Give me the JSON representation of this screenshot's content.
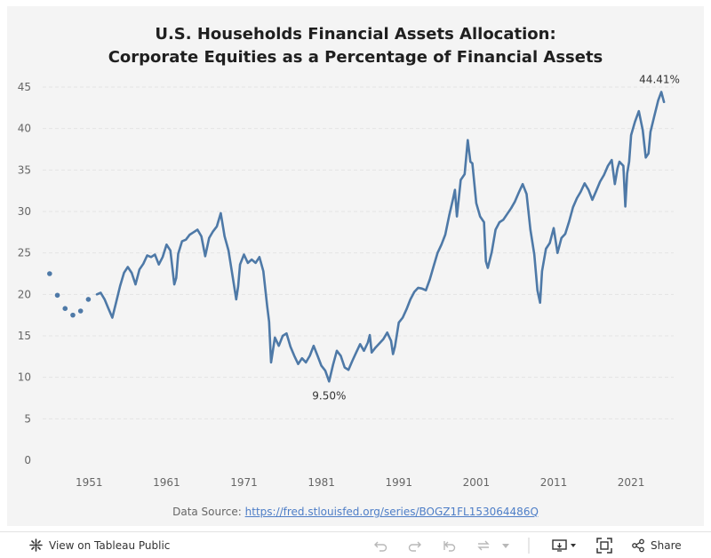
{
  "title": {
    "line1": "U.S. Households Financial Assets Allocation:",
    "line2": "Corporate Equities as a Percentage of Financial Assets"
  },
  "source": {
    "prefix": "Data Source: ",
    "link_text": "https://fred.stlouisfed.org/series/BOGZ1FL153064486Q"
  },
  "toolbar": {
    "view_label": "View on Tableau Public",
    "share_label": "Share",
    "icons": [
      "tableau-logo-icon",
      "undo-icon",
      "redo-icon",
      "revert-icon",
      "refresh-icon",
      "pause-dropdown-icon",
      "download-icon",
      "fullscreen-icon",
      "share-icon"
    ]
  },
  "colors": {
    "line": "#4e79a7",
    "background": "#f4f4f4",
    "grid": "#e3e3e3",
    "axis_text": "#666666"
  },
  "chart_data": {
    "type": "line",
    "title": "U.S. Households Financial Assets Allocation: Corporate Equities as a Percentage of Financial Assets",
    "ylim": [
      0,
      45
    ],
    "yticks": [
      "0",
      "5",
      "10",
      "15",
      "20",
      "25",
      "30",
      "35",
      "40",
      "45"
    ],
    "xlim": [
      1945,
      2026.5
    ],
    "xticks": [
      "1951",
      "1961",
      "1971",
      "1981",
      "1991",
      "2001",
      "2011",
      "2021"
    ],
    "grid": "horizontal dashed",
    "annual_points": [
      [
        1945.9,
        22.5
      ],
      [
        1946.9,
        19.9
      ],
      [
        1947.9,
        18.3
      ],
      [
        1948.9,
        17.5
      ],
      [
        1949.9,
        18.0
      ],
      [
        1950.9,
        19.4
      ]
    ],
    "series": [
      {
        "x": [
          1952.0,
          1952.5,
          1953.0,
          1953.5,
          1954.0,
          1954.5,
          1955.0,
          1955.5,
          1956.0,
          1956.5,
          1957.0,
          1957.5,
          1958.0,
          1958.5,
          1959.0,
          1959.5,
          1960.0,
          1960.5,
          1961.0,
          1961.5,
          1962.0,
          1962.25,
          1962.5,
          1963.0,
          1963.5,
          1964.0,
          1964.5,
          1965.0,
          1965.5,
          1966.0,
          1966.5,
          1967.0,
          1967.5,
          1968.0,
          1968.5,
          1969.0,
          1969.5,
          1970.0,
          1970.25,
          1970.5,
          1971.0,
          1971.5,
          1972.0,
          1972.5,
          1973.0,
          1973.5,
          1974.0,
          1974.25,
          1974.5,
          1975.0,
          1975.5,
          1976.0,
          1976.5,
          1977.0,
          1977.5,
          1978.0,
          1978.5,
          1979.0,
          1979.5,
          1980.0,
          1980.5,
          1981.0,
          1981.5,
          1982.0,
          1982.5,
          1983.0,
          1983.5,
          1984.0,
          1984.5,
          1985.0,
          1985.5,
          1986.0,
          1986.5,
          1987.0,
          1987.25,
          1987.5,
          1988.0,
          1988.5,
          1989.0,
          1989.5,
          1990.0,
          1990.25,
          1990.5,
          1991.0,
          1991.5,
          1992.0,
          1992.5,
          1993.0,
          1993.5,
          1994.0,
          1994.5,
          1995.0,
          1995.5,
          1996.0,
          1996.5,
          1997.0,
          1997.5,
          1998.0,
          1998.25,
          1998.5,
          1999.0,
          1999.5,
          1999.9,
          2000.25,
          2000.5,
          2001.0,
          2001.5,
          2002.0,
          2002.25,
          2002.5,
          2003.0,
          2003.5,
          2004.0,
          2004.5,
          2005.0,
          2005.5,
          2006.0,
          2006.5,
          2007.0,
          2007.5,
          2008.0,
          2008.5,
          2008.9,
          2009.25,
          2009.5,
          2010.0,
          2010.5,
          2011.0,
          2011.5,
          2012.0,
          2012.5,
          2013.0,
          2013.5,
          2014.0,
          2014.5,
          2015.0,
          2015.5,
          2016.0,
          2016.5,
          2017.0,
          2017.5,
          2018.0,
          2018.5,
          2018.9,
          2019.25,
          2019.5,
          2020.0,
          2020.25,
          2020.5,
          2020.75,
          2021.0,
          2021.5,
          2022.0,
          2022.5,
          2022.9,
          2023.25,
          2023.5,
          2024.0,
          2024.5,
          2024.9,
          2025.25
        ],
        "values": [
          20.0,
          20.2,
          19.4,
          18.3,
          17.2,
          19.1,
          21.0,
          22.6,
          23.3,
          22.6,
          21.2,
          23.0,
          23.7,
          24.7,
          24.5,
          24.8,
          23.6,
          24.5,
          26.0,
          25.3,
          21.2,
          22.0,
          24.9,
          26.4,
          26.6,
          27.2,
          27.5,
          27.8,
          27.0,
          24.6,
          26.8,
          27.6,
          28.2,
          29.8,
          27.0,
          25.3,
          22.4,
          19.4,
          21.0,
          23.6,
          24.8,
          23.8,
          24.2,
          23.8,
          24.5,
          22.8,
          18.6,
          16.7,
          11.8,
          14.8,
          13.8,
          15.0,
          15.3,
          13.7,
          12.6,
          11.6,
          12.3,
          11.8,
          12.6,
          13.8,
          12.6,
          11.4,
          10.8,
          9.5,
          11.5,
          13.2,
          12.6,
          11.2,
          10.9,
          12.0,
          13.0,
          14.0,
          13.2,
          14.2,
          15.1,
          13.0,
          13.6,
          14.1,
          14.6,
          15.4,
          14.4,
          12.8,
          13.7,
          16.6,
          17.2,
          18.2,
          19.4,
          20.3,
          20.8,
          20.7,
          20.5,
          21.8,
          23.4,
          25.0,
          26.0,
          27.2,
          29.5,
          31.5,
          32.6,
          29.4,
          33.8,
          34.5,
          38.6,
          36.0,
          35.8,
          31.0,
          29.4,
          28.7,
          24.0,
          23.2,
          25.1,
          27.8,
          28.7,
          29.0,
          29.7,
          30.4,
          31.2,
          32.3,
          33.3,
          32.1,
          27.8,
          24.8,
          20.5,
          19.0,
          22.8,
          25.5,
          26.2,
          28.0,
          25.0,
          26.8,
          27.3,
          28.8,
          30.5,
          31.6,
          32.4,
          33.4,
          32.6,
          31.4,
          32.5,
          33.6,
          34.4,
          35.5,
          36.2,
          33.3,
          35.2,
          36.0,
          35.5,
          30.6,
          34.6,
          36.0,
          39.2,
          40.8,
          42.1,
          39.8,
          36.5,
          37.0,
          39.6,
          41.5,
          43.4,
          44.41,
          43.2
        ],
        "annotations": [
          {
            "label": "44.41%",
            "x": 2024.9,
            "value": 44.41
          },
          {
            "label": "9.50%",
            "x": 1982.0,
            "value": 9.5
          }
        ]
      }
    ]
  }
}
